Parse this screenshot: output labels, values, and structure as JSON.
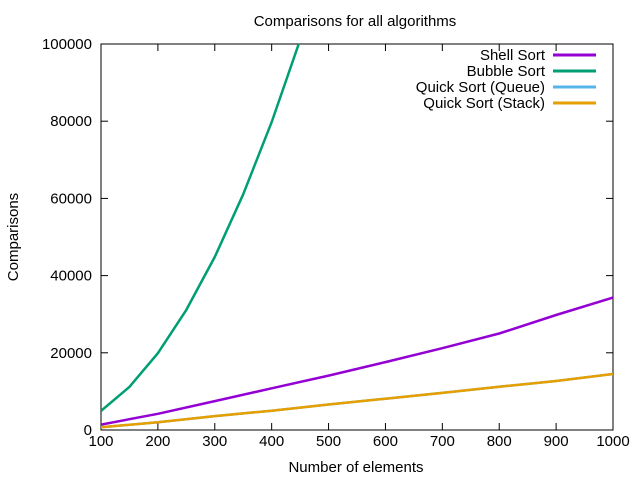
{
  "chart_data": {
    "type": "line",
    "title": "Comparisons for all algorithms",
    "xlabel": "Number of elements",
    "ylabel": "Comparisons",
    "xlim": [
      100,
      1000
    ],
    "ylim": [
      0,
      100000
    ],
    "x_ticks": [
      100,
      200,
      300,
      400,
      500,
      600,
      700,
      800,
      900,
      1000
    ],
    "y_ticks": [
      0,
      20000,
      40000,
      60000,
      80000,
      100000
    ],
    "grid": false,
    "legend_position": "top-right",
    "series": [
      {
        "name": "Shell Sort",
        "color": "#9400d3",
        "x": [
          100,
          200,
          300,
          400,
          500,
          600,
          700,
          800,
          900,
          1000
        ],
        "values": [
          1400,
          4200,
          7500,
          10800,
          14100,
          17600,
          21200,
          25000,
          29800,
          34300
        ]
      },
      {
        "name": "Bubble Sort",
        "color": "#009e73",
        "x": [
          100,
          150,
          200,
          250,
          300,
          350,
          400,
          450
        ],
        "values": [
          4950,
          11175,
          19900,
          31125,
          44850,
          61075,
          79800,
          101025
        ]
      },
      {
        "name": "Quick Sort (Queue)",
        "color": "#56b4e9",
        "x": [
          100,
          200,
          300,
          400,
          500,
          600,
          700,
          800,
          900,
          1000
        ],
        "values": [
          700,
          2000,
          3600,
          5000,
          6600,
          8100,
          9600,
          11200,
          12700,
          14500
        ]
      },
      {
        "name": "Quick Sort (Stack)",
        "color": "#e69f00",
        "x": [
          100,
          200,
          300,
          400,
          500,
          600,
          700,
          800,
          900,
          1000
        ],
        "values": [
          700,
          2000,
          3600,
          5000,
          6600,
          8100,
          9600,
          11200,
          12700,
          14500
        ]
      }
    ]
  }
}
